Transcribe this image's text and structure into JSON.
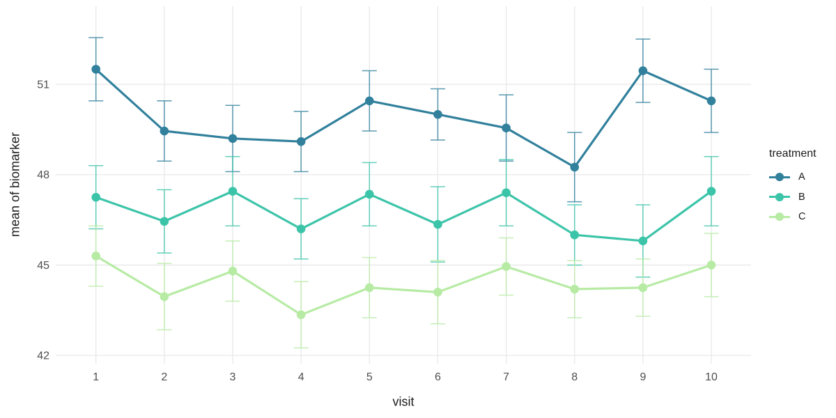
{
  "figure": {
    "y_axis_title": "mean of biomarker",
    "x_axis_title": "visit",
    "legend_title": "treatment"
  },
  "colors": {
    "background": "#ffffff",
    "gridline": "#e8e8e8",
    "tick_label": "#4d4d4d",
    "axis_title": "#1a1a1a"
  },
  "chart_data": {
    "type": "line",
    "title": "",
    "xlabel": "visit",
    "ylabel": "mean of biomarker",
    "legend_title": "treatment",
    "legend_position": "right",
    "grid": "major-only",
    "error_bars": true,
    "x": [
      1,
      2,
      3,
      4,
      5,
      6,
      7,
      8,
      9,
      10
    ],
    "x_tick_labels": [
      "1",
      "2",
      "3",
      "4",
      "5",
      "6",
      "7",
      "8",
      "9",
      "10"
    ],
    "y_ticks": [
      42,
      45,
      48,
      51
    ],
    "y_tick_labels": [
      "42",
      "45",
      "48",
      "51"
    ],
    "xlim": [
      0.4,
      10.6
    ],
    "ylim": [
      41.7,
      53.6
    ],
    "series": [
      {
        "name": "A",
        "color": "#31809c",
        "values": [
          51.5,
          49.45,
          49.2,
          49.1,
          50.45,
          50.0,
          49.55,
          48.25,
          51.45,
          50.45
        ],
        "errors": [
          1.05,
          1.0,
          1.1,
          1.0,
          1.0,
          0.85,
          1.1,
          1.15,
          1.05,
          1.05
        ]
      },
      {
        "name": "B",
        "color": "#3cc4a9",
        "values": [
          47.25,
          46.45,
          47.45,
          46.2,
          47.35,
          46.35,
          47.4,
          46.0,
          45.8,
          47.45
        ],
        "errors": [
          1.05,
          1.05,
          1.15,
          1.0,
          1.05,
          1.25,
          1.1,
          1.0,
          1.2,
          1.15
        ]
      },
      {
        "name": "C",
        "color": "#b7eba4",
        "values": [
          45.3,
          43.95,
          44.8,
          43.35,
          44.25,
          44.1,
          44.95,
          44.2,
          44.25,
          45.0
        ],
        "errors": [
          1.0,
          1.1,
          1.0,
          1.1,
          1.0,
          1.05,
          0.95,
          0.95,
          0.95,
          1.05
        ]
      }
    ]
  }
}
